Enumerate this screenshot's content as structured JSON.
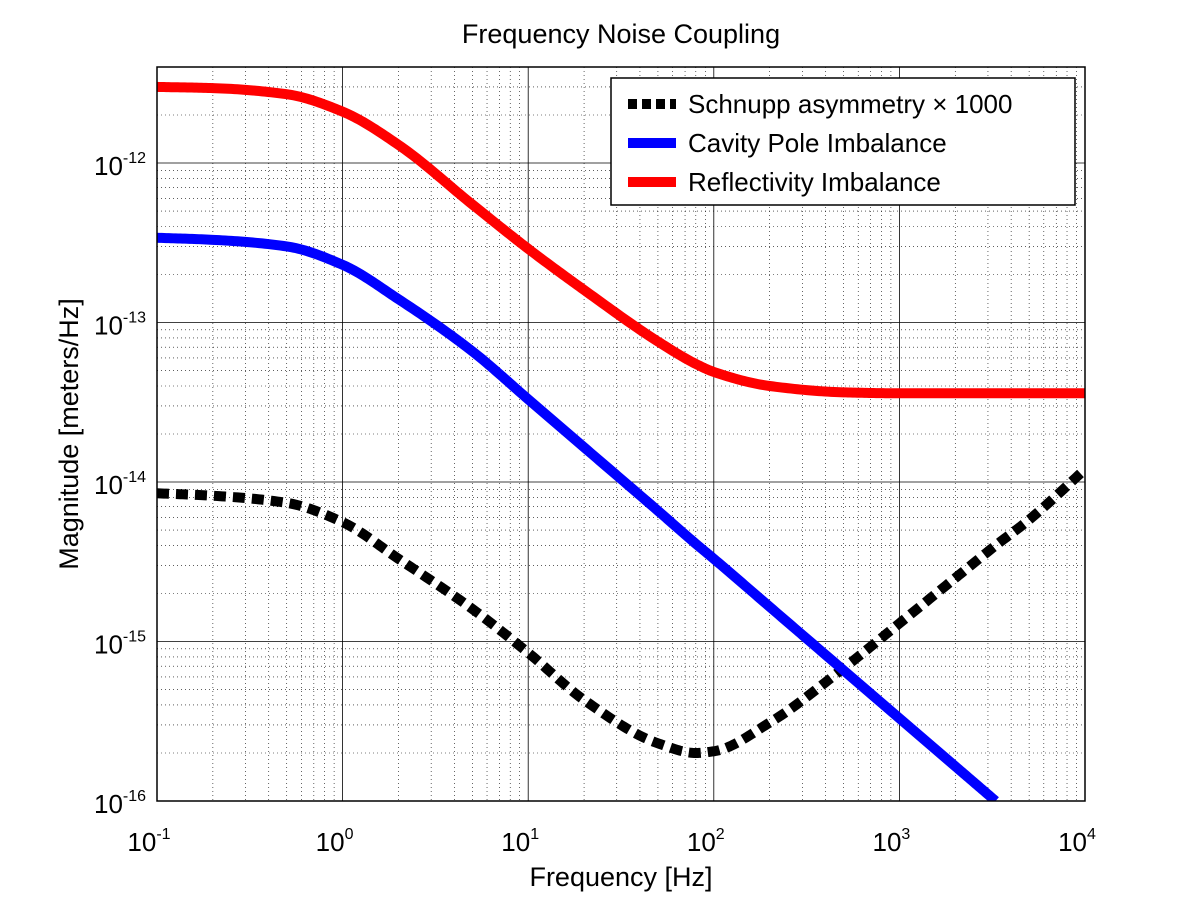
{
  "chart_data": {
    "type": "line",
    "title": "Frequency Noise Coupling",
    "xlabel": "Frequency [Hz]",
    "ylabel": "Magnitude [meters/Hz]",
    "xscale": "log",
    "yscale": "log",
    "xlim": [
      0.1,
      10000
    ],
    "ylim": [
      1e-16,
      4e-12
    ],
    "grid": "major and minor",
    "legend_position": "top-right",
    "x_ticks": [
      {
        "base": "10",
        "exp": "-1",
        "value": 0.1
      },
      {
        "base": "10",
        "exp": "0",
        "value": 1
      },
      {
        "base": "10",
        "exp": "1",
        "value": 10
      },
      {
        "base": "10",
        "exp": "2",
        "value": 100
      },
      {
        "base": "10",
        "exp": "3",
        "value": 1000
      },
      {
        "base": "10",
        "exp": "4",
        "value": 10000
      }
    ],
    "y_ticks": [
      {
        "base": "10",
        "exp": "-16",
        "value": 1e-16
      },
      {
        "base": "10",
        "exp": "-15",
        "value": 1e-15
      },
      {
        "base": "10",
        "exp": "-14",
        "value": 1e-14
      },
      {
        "base": "10",
        "exp": "-13",
        "value": 1e-13
      },
      {
        "base": "10",
        "exp": "-12",
        "value": 1e-12
      }
    ],
    "x": [
      0.1,
      0.2,
      0.5,
      1,
      2,
      5,
      10,
      20,
      50,
      80,
      100,
      200,
      500,
      1000,
      2000,
      3300,
      5000,
      10000
    ],
    "series": [
      {
        "name": "Schnupp asymmetry × 1000",
        "color": "#000000",
        "style": "dashed",
        "values": [
          8.5e-15,
          8.2e-15,
          7.4e-15,
          5.6e-15,
          3.3e-15,
          1.6e-15,
          8.5e-16,
          4.3e-16,
          2.3e-16,
          2e-16,
          2.05e-16,
          3.1e-16,
          6.8e-16,
          1.3e-15,
          2.5e-15,
          4e-15,
          5.8e-15,
          1.2e-14
        ]
      },
      {
        "name": "Cavity Pole Imbalance",
        "color": "#0000ff",
        "style": "solid",
        "values": [
          3.4e-13,
          3.3e-13,
          3e-13,
          2.3e-13,
          1.4e-13,
          6.6e-14,
          3.3e-14,
          1.65e-14,
          6.6e-15,
          4.1e-15,
          3.3e-15,
          1.65e-15,
          6.6e-16,
          3.3e-16,
          1.65e-16,
          1e-16,
          null,
          null
        ]
      },
      {
        "name": "Reflectivity Imbalance",
        "color": "#ff0000",
        "style": "solid",
        "values": [
          3e-12,
          2.95e-12,
          2.7e-12,
          2.1e-12,
          1.3e-12,
          5.5e-13,
          2.9e-13,
          1.6e-13,
          7.6e-14,
          5.5e-14,
          4.9e-14,
          4e-14,
          3.65e-14,
          3.6e-14,
          3.6e-14,
          3.6e-14,
          3.6e-14,
          3.6e-14
        ]
      }
    ]
  }
}
